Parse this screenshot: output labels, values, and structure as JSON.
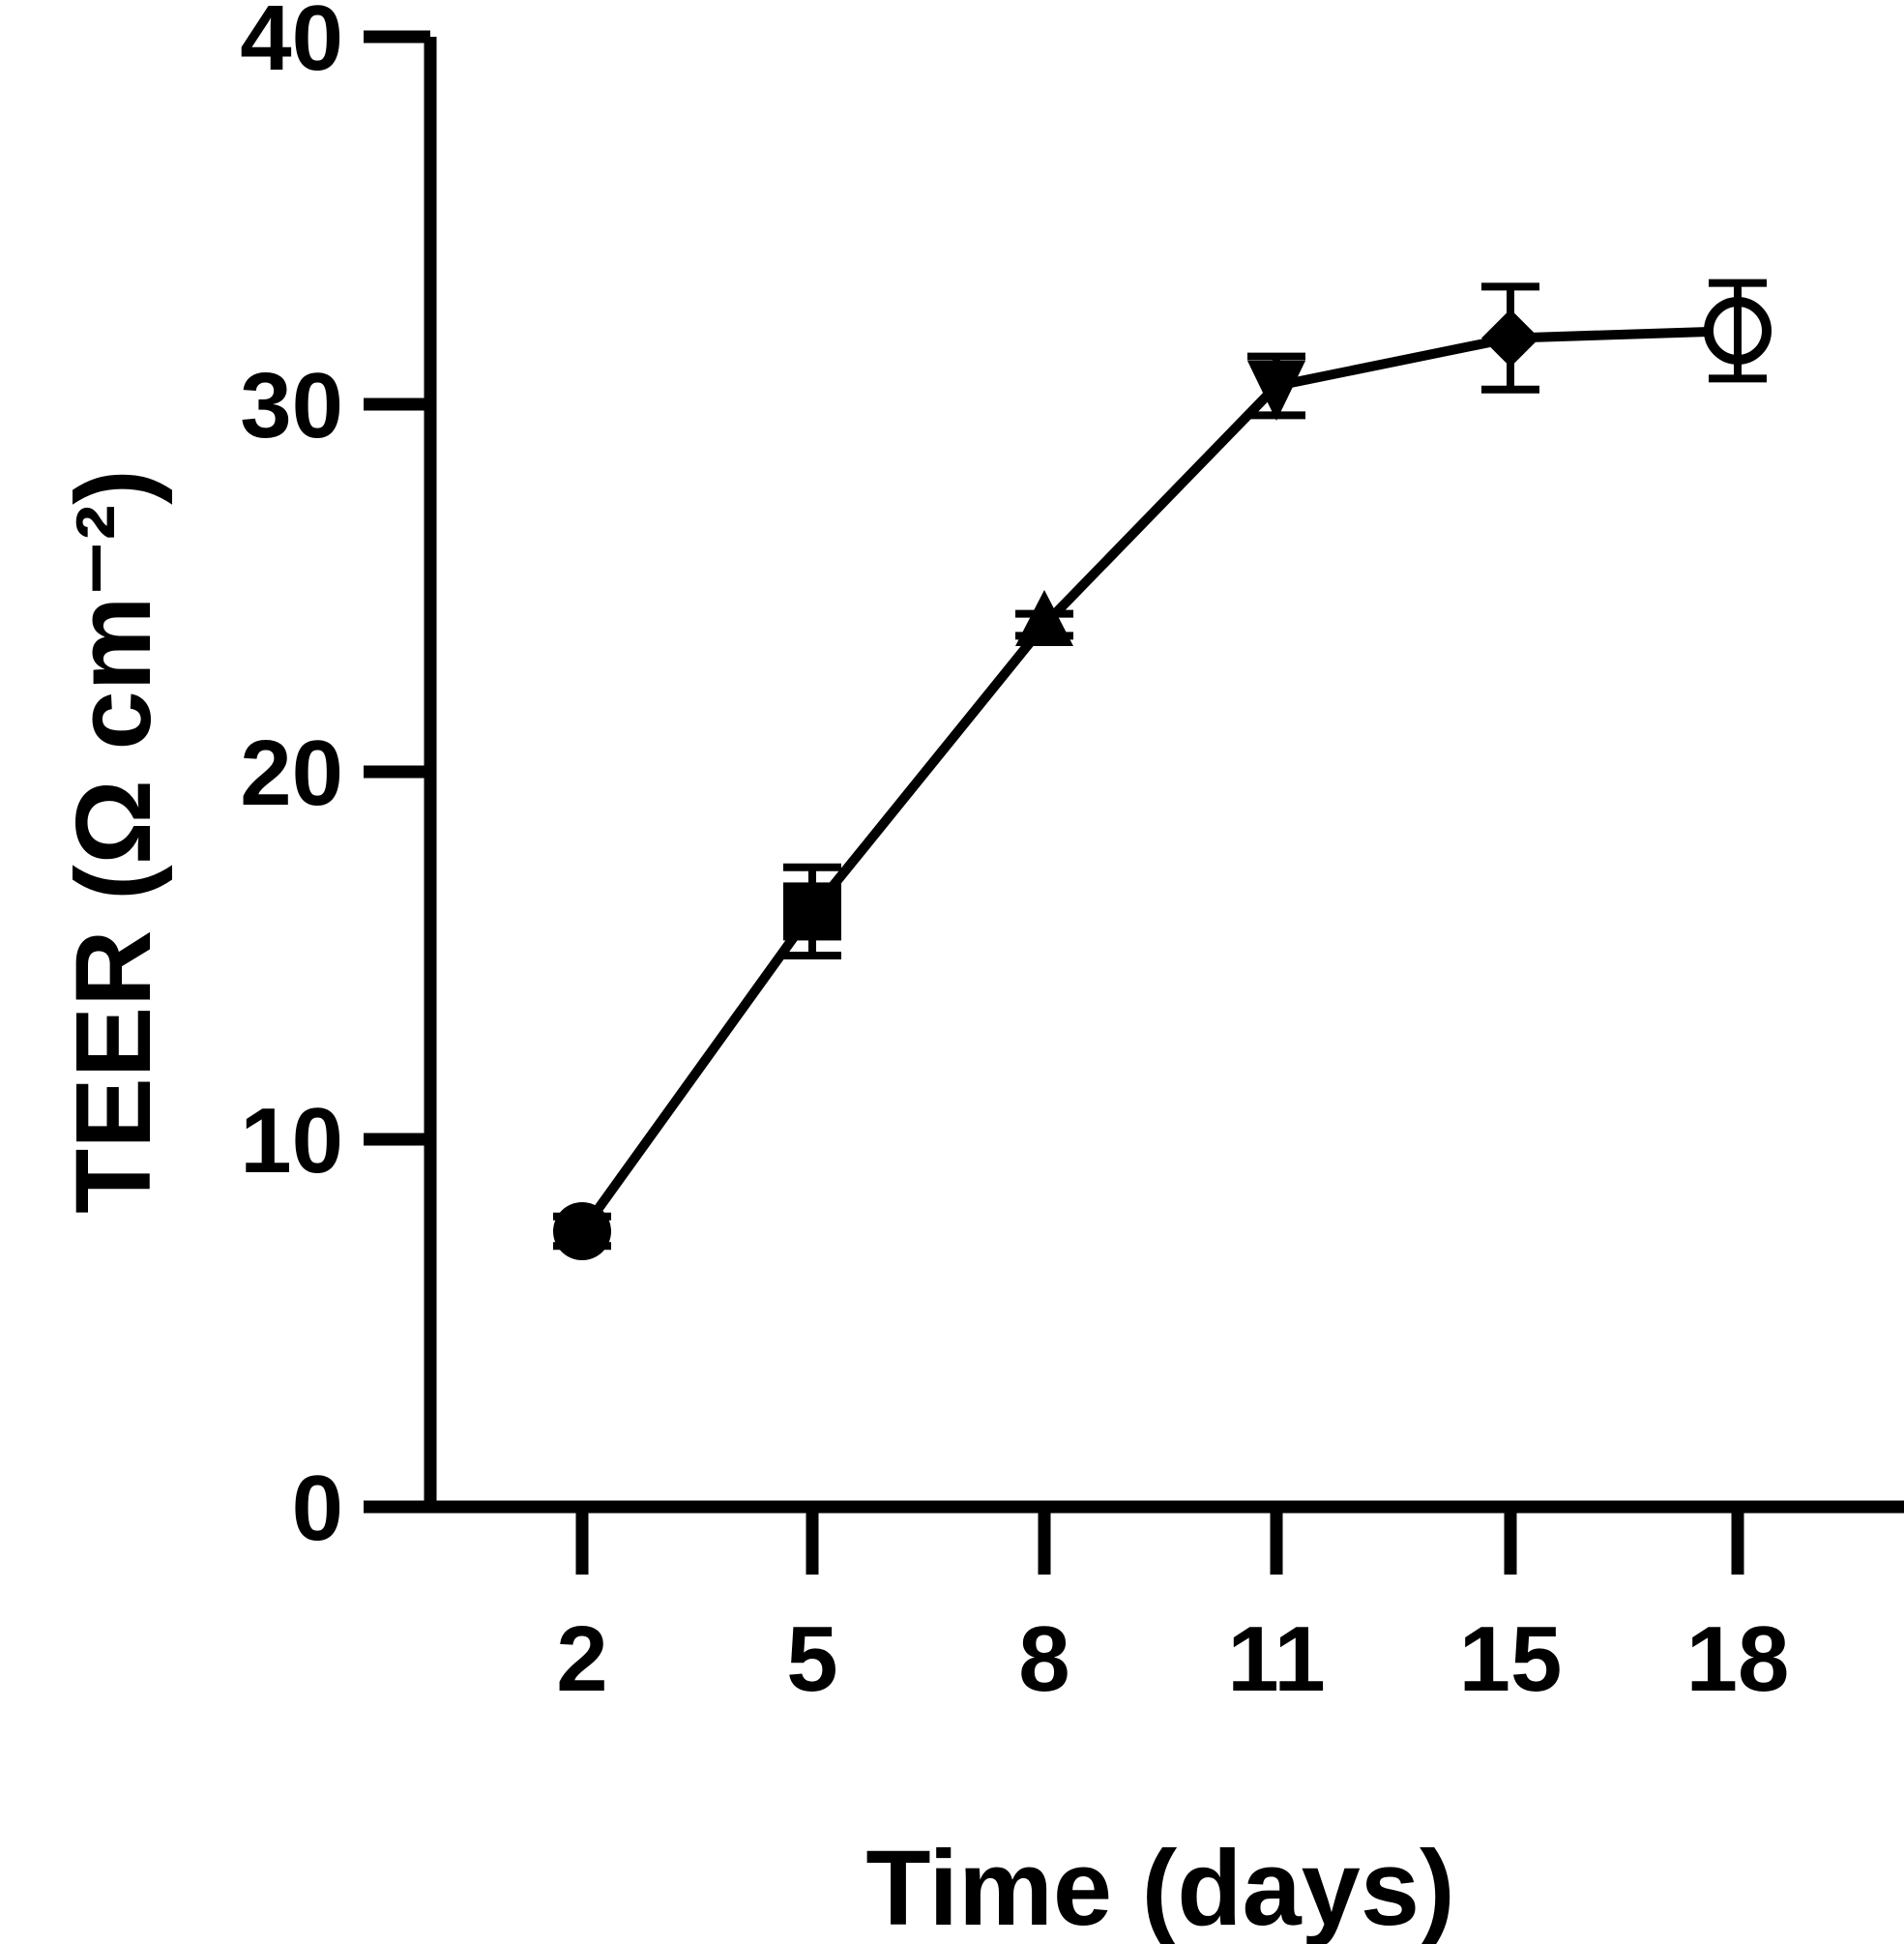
{
  "chart_data": {
    "type": "line",
    "x_categories": [
      "2",
      "5",
      "8",
      "11",
      "15",
      "18"
    ],
    "series": [
      {
        "values": [
          7.5,
          16.2,
          24.0,
          30.5,
          31.8,
          32.0
        ],
        "errors": [
          0.4,
          1.2,
          0.3,
          0.8,
          1.4,
          1.3
        ],
        "markers": [
          "circle",
          "square",
          "triangle-up",
          "triangle-down",
          "diamond",
          "circle-open"
        ],
        "color": "#000000"
      }
    ],
    "xlabel": "Time (days)",
    "ylabel": "TEER (Ω cm⁻²)",
    "ylim": [
      0,
      40
    ],
    "yticks": [
      0,
      10,
      20,
      30,
      40
    ],
    "grid": false
  }
}
